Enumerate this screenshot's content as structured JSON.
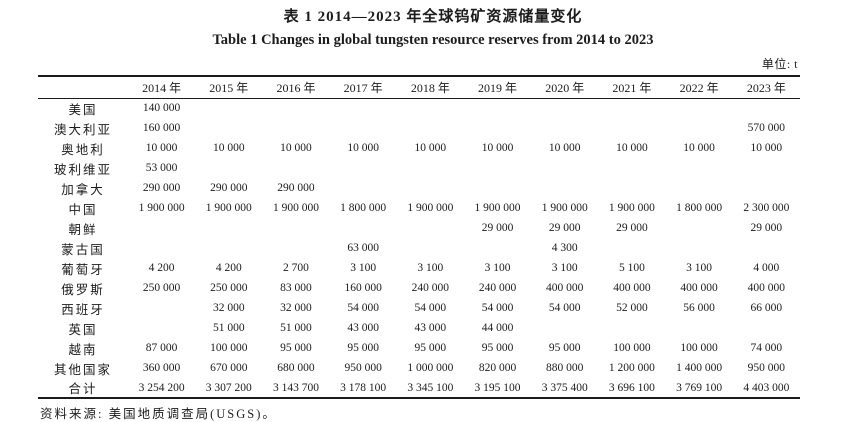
{
  "page": {
    "title_zh": "表 1  2014—2023 年全球钨矿资源储量变化",
    "title_en": "Table 1   Changes in global tungsten resource reserves from 2014 to 2023",
    "unit_label": "单位: t",
    "source_note": "资料来源: 美国地质调查局(USGS)。"
  },
  "table": {
    "corner_label": "",
    "year_columns": [
      "2014 年",
      "2015 年",
      "2016 年",
      "2017 年",
      "2018 年",
      "2019 年",
      "2020 年",
      "2021 年",
      "2022 年",
      "2023 年"
    ],
    "rows": [
      {
        "name": "美国",
        "values": [
          "140 000",
          "",
          "",
          "",
          "",
          "",
          "",
          "",
          "",
          ""
        ]
      },
      {
        "name": "澳大利亚",
        "values": [
          "160 000",
          "",
          "",
          "",
          "",
          "",
          "",
          "",
          "",
          "570 000"
        ]
      },
      {
        "name": "奥地利",
        "values": [
          "10 000",
          "10 000",
          "10 000",
          "10 000",
          "10 000",
          "10 000",
          "10 000",
          "10 000",
          "10 000",
          "10 000"
        ]
      },
      {
        "name": "玻利维亚",
        "values": [
          "53 000",
          "",
          "",
          "",
          "",
          "",
          "",
          "",
          "",
          ""
        ]
      },
      {
        "name": "加拿大",
        "values": [
          "290 000",
          "290 000",
          "290 000",
          "",
          "",
          "",
          "",
          "",
          "",
          ""
        ]
      },
      {
        "name": "中国",
        "values": [
          "1 900 000",
          "1 900 000",
          "1 900 000",
          "1 800 000",
          "1 900 000",
          "1 900 000",
          "1 900 000",
          "1 900 000",
          "1 800 000",
          "2 300 000"
        ]
      },
      {
        "name": "朝鲜",
        "values": [
          "",
          "",
          "",
          "",
          "",
          "29 000",
          "29 000",
          "29 000",
          "",
          "29 000"
        ]
      },
      {
        "name": "蒙古国",
        "values": [
          "",
          "",
          "",
          "63 000",
          "",
          "",
          "4 300",
          "",
          "",
          ""
        ]
      },
      {
        "name": "葡萄牙",
        "values": [
          "4 200",
          "4 200",
          "2 700",
          "3 100",
          "3 100",
          "3 100",
          "3 100",
          "5 100",
          "3 100",
          "4 000"
        ]
      },
      {
        "name": "俄罗斯",
        "values": [
          "250 000",
          "250 000",
          "83 000",
          "160 000",
          "240 000",
          "240 000",
          "400 000",
          "400 000",
          "400 000",
          "400 000"
        ]
      },
      {
        "name": "西班牙",
        "values": [
          "",
          "32 000",
          "32 000",
          "54 000",
          "54 000",
          "54 000",
          "54 000",
          "52 000",
          "56 000",
          "66 000"
        ]
      },
      {
        "name": "英国",
        "values": [
          "",
          "51 000",
          "51 000",
          "43 000",
          "43 000",
          "44 000",
          "",
          "",
          "",
          ""
        ]
      },
      {
        "name": "越南",
        "values": [
          "87 000",
          "100 000",
          "95 000",
          "95 000",
          "95 000",
          "95 000",
          "95 000",
          "100 000",
          "100 000",
          "74 000"
        ]
      },
      {
        "name": "其他国家",
        "values": [
          "360 000",
          "670 000",
          "680 000",
          "950 000",
          "1 000 000",
          "820 000",
          "880 000",
          "1 200 000",
          "1 400 000",
          "950 000"
        ]
      },
      {
        "name": "合计",
        "values": [
          "3 254 200",
          "3 307 200",
          "3 143 700",
          "3 178 100",
          "3 345 100",
          "3 195 100",
          "3 375 400",
          "3 696 100",
          "3 769 100",
          "4 403 000"
        ]
      }
    ]
  }
}
